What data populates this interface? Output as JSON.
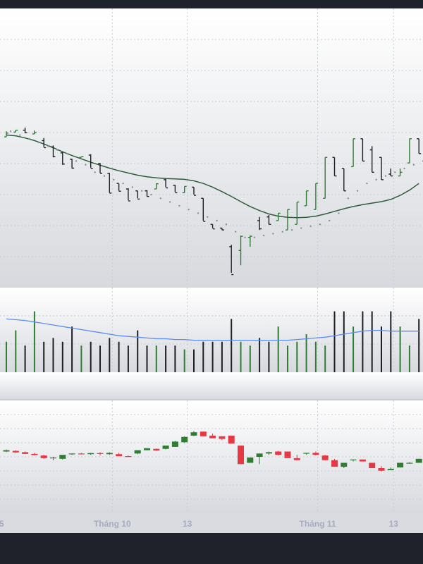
{
  "colors": {
    "frame": "#1f222b",
    "up": "#2e7d32",
    "down": "#e53945",
    "bar_dark": "#1c1f26",
    "ma_line": "#2f5d3a",
    "volume_ma": "#5b8def",
    "grid": "#c9ccd4"
  },
  "x_axis": {
    "labels": [
      {
        "text": "5",
        "index": -0.5
      },
      {
        "text": "Tháng 10",
        "index": 11.3
      },
      {
        "text": "13",
        "index": 19.3
      },
      {
        "text": "Tháng 11",
        "index": 33.2
      },
      {
        "text": "13",
        "index": 41.3
      }
    ]
  },
  "chart_data": [
    {
      "type": "ohlc",
      "panel": "price-bars",
      "title": "",
      "grid": true,
      "categories_count": 45,
      "series": [
        {
          "name": "",
          "kind": "ohlc",
          "values": [
            [
              0,
              10.5,
              12.0,
              10.5,
              11.5
            ],
            [
              1,
              11.8,
              12.3,
              11.8,
              12.3
            ],
            [
              2,
              12.3,
              13.0,
              11.5,
              11.6
            ],
            [
              3,
              11.3,
              12.2,
              11.3,
              11.6
            ],
            [
              4,
              9.5,
              10.2,
              7.8,
              7.6
            ],
            [
              5,
              7.8,
              8.2,
              5.0,
              5.2
            ],
            [
              6,
              6.2,
              6.5,
              3.0,
              3.2
            ],
            [
              7,
              4.5,
              4.6,
              2.0,
              2.1
            ],
            [
              8,
              5.0,
              5.2,
              5.0,
              5.2
            ],
            [
              9,
              5.6,
              5.8,
              2.2,
              2.0
            ],
            [
              10,
              3.3,
              3.5,
              0.8,
              0.7
            ],
            [
              11,
              0.7,
              0.8,
              -4.5,
              -4.6
            ],
            [
              12,
              -2.0,
              -2.1,
              -4.0,
              -4.1
            ],
            [
              13,
              -3.5,
              -3.3,
              -6.5,
              -6.7
            ],
            [
              14,
              -4.0,
              -4.0,
              -6.0,
              -6.2
            ],
            [
              15,
              -4.0,
              -3.8,
              -5.5,
              -5.5
            ],
            [
              16,
              -3.5,
              -3.5,
              -2.0,
              -2.1
            ],
            [
              17,
              -1.0,
              -0.8,
              -3.0,
              -3.2
            ],
            [
              18,
              -2.5,
              -2.4,
              -4.3,
              -4.5
            ],
            [
              19,
              -4.5,
              -2.8,
              -4.5,
              -2.8
            ],
            [
              20,
              -3.0,
              -3.0,
              -5.0,
              -5.2
            ],
            [
              21,
              -6.0,
              -6.0,
              -12.0,
              -12.2
            ],
            [
              22,
              -13.0,
              -13.0,
              -14.0,
              -14.2
            ],
            [
              23,
              -14.0,
              -14.5,
              -14.0,
              -14.5
            ],
            [
              24,
              -19.0,
              -18.5,
              -26.0,
              -26.5
            ],
            [
              25,
              -20.0,
              -16.0,
              -24.0,
              -16.2
            ],
            [
              26,
              -16.5,
              -16.0,
              -19.0,
              -16.2
            ],
            [
              27,
              -12.0,
              -11.0,
              -14.5,
              -14.2
            ],
            [
              28,
              -11.0,
              -10.5,
              -13.0,
              -13.0
            ],
            [
              29,
              -12.0,
              -10.0,
              -12.0,
              -10.0
            ],
            [
              30,
              -14.5,
              -9.0,
              -14.5,
              -9.0
            ],
            [
              31,
              -13.0,
              -7.0,
              -13.0,
              -7.0
            ],
            [
              32,
              -8.0,
              -4.0,
              -8.0,
              -4.0
            ],
            [
              33,
              -9.0,
              -2.0,
              -9.0,
              -2.0
            ],
            [
              34,
              -6.0,
              5.0,
              -6.0,
              5.0
            ],
            [
              35,
              5.0,
              5.0,
              0.0,
              0.0
            ],
            [
              36,
              2.0,
              2.0,
              -4.0,
              -4.0
            ],
            [
              37,
              2.5,
              10.0,
              2.5,
              10.0
            ],
            [
              38,
              10.0,
              10.0,
              4.0,
              4.0
            ],
            [
              39,
              7.0,
              8.0,
              1.0,
              1.0
            ],
            [
              40,
              5.0,
              5.0,
              -1.0,
              -1.0
            ],
            [
              41,
              0.5,
              2.0,
              0.0,
              0.0
            ],
            [
              42,
              0.0,
              2.0,
              0.0,
              1.0
            ],
            [
              43,
              3.5,
              10.0,
              3.5,
              10.0
            ],
            [
              44,
              10.0,
              10.0,
              6.0,
              6.0
            ]
          ]
        },
        {
          "name": "",
          "kind": "ma",
          "values": [
            11.0,
            10.8,
            10.2,
            9.5,
            8.6,
            7.6,
            6.5,
            5.5,
            4.6,
            3.7,
            2.9,
            2.1,
            1.4,
            0.8,
            0.2,
            -0.2,
            -0.5,
            -0.7,
            -0.8,
            -0.9,
            -1.3,
            -2.0,
            -3.0,
            -4.2,
            -5.5,
            -6.9,
            -8.2,
            -9.3,
            -10.2,
            -10.8,
            -11.1,
            -11.2,
            -11.1,
            -10.8,
            -10.2,
            -9.5,
            -8.8,
            -8.2,
            -7.7,
            -7.3,
            -6.9,
            -6.3,
            -5.2,
            -3.8,
            -2.0
          ]
        },
        {
          "name": "",
          "kind": "dots",
          "values": [
            12.0,
            11.0,
            10.0,
            9.0,
            8.0,
            7.0,
            6.0,
            4.0,
            3.0,
            1.0,
            0.0,
            -1.0,
            -2.0,
            -3.0,
            -4.0,
            -5.0,
            -6.0,
            -7.0,
            -8.0,
            -9.0,
            -10.0,
            -11.0,
            -12.0,
            -13.0,
            -15.0,
            -16.5,
            -16.5,
            -16.0,
            -15.5,
            -15.0,
            -14.5,
            -14.0,
            -13.5,
            -13.0,
            -12.0,
            -10.0,
            -6.0,
            -4.0,
            -2.0,
            -1.0,
            0.0,
            1.0,
            2.0,
            3.0,
            4.0
          ]
        }
      ],
      "ylim": [
        -30,
        45
      ]
    },
    {
      "type": "bar",
      "panel": "volume",
      "grid": true,
      "categories_count": 45,
      "series": [
        {
          "name": "",
          "values": [
            40,
            55,
            35,
            80,
            40,
            45,
            40,
            60,
            35,
            40,
            35,
            45,
            40,
            35,
            55,
            35,
            35,
            35,
            35,
            30,
            30,
            40,
            40,
            40,
            70,
            40,
            35,
            45,
            40,
            60,
            35,
            40,
            50,
            40,
            35,
            80,
            80,
            60,
            80,
            80,
            60,
            80,
            60,
            35,
            70
          ]
        },
        {
          "name": "",
          "kind": "ma",
          "values": [
            70,
            69,
            68,
            66,
            64,
            62,
            60,
            58,
            56,
            54,
            52,
            50,
            48,
            47,
            46,
            45,
            44,
            44,
            43,
            43,
            42,
            42,
            42,
            42,
            42,
            42,
            42,
            42,
            42,
            42,
            42,
            43,
            44,
            45,
            46,
            48,
            50,
            52,
            54,
            55,
            55,
            54,
            54,
            54,
            54
          ]
        }
      ],
      "ylim": [
        0,
        100
      ]
    },
    {
      "type": "candlestick",
      "panel": "candles",
      "grid": true,
      "categories_count": 45,
      "series": [
        {
          "name": "",
          "values": [
            [
              0,
              1.5,
              3.0,
              1.0,
              2.5
            ],
            [
              1,
              2.0,
              2.5,
              0.5,
              0.8
            ],
            [
              2,
              1.0,
              1.5,
              -0.5,
              -0.3
            ],
            [
              3,
              -0.3,
              0.5,
              -1.5,
              -1.2
            ],
            [
              4,
              -1.5,
              -1.0,
              -4.0,
              -3.5
            ],
            [
              5,
              -3.5,
              -2.5,
              -5.0,
              -3.0
            ],
            [
              6,
              -4.0,
              -1.5,
              -4.5,
              -1.0
            ],
            [
              7,
              -0.5,
              0.0,
              -1.0,
              0.0
            ],
            [
              8,
              0.0,
              0.5,
              -0.5,
              -0.3
            ],
            [
              9,
              -0.5,
              0.5,
              -1.0,
              0.3
            ],
            [
              10,
              0.3,
              1.0,
              -1.5,
              -0.3
            ],
            [
              11,
              -0.5,
              1.0,
              -1.0,
              0.5
            ],
            [
              12,
              -0.5,
              0.5,
              -2.0,
              -2.0
            ],
            [
              13,
              -2.0,
              -1.5,
              -2.5,
              -2.5
            ],
            [
              14,
              0.0,
              2.5,
              -0.5,
              2.5
            ],
            [
              15,
              2.5,
              4.0,
              2.5,
              4.0
            ],
            [
              16,
              3.5,
              3.8,
              2.0,
              2.3
            ],
            [
              17,
              3.5,
              6.0,
              3.0,
              6.0
            ],
            [
              18,
              5.0,
              9.5,
              5.0,
              9.0
            ],
            [
              19,
              8.5,
              13.0,
              8.0,
              12.5
            ],
            [
              20,
              13.5,
              17.0,
              13.0,
              16.0
            ],
            [
              21,
              16.5,
              16.5,
              13.0,
              13.0
            ],
            [
              22,
              13.5,
              15.0,
              11.5,
              11.5
            ],
            [
              23,
              13.0,
              12.5,
              10.0,
              11.0
            ],
            [
              24,
              13.5,
              13.5,
              7.5,
              7.5
            ],
            [
              25,
              6.0,
              6.0,
              -8.0,
              -8.0
            ],
            [
              26,
              -7.0,
              -3.0,
              -7.0,
              -3.0
            ],
            [
              27,
              -2.5,
              0.0,
              -8.0,
              0.0
            ],
            [
              28,
              0.0,
              1.5,
              -1.0,
              1.0
            ],
            [
              29,
              1.5,
              2.0,
              -1.5,
              -1.0
            ],
            [
              30,
              1.5,
              1.5,
              -3.5,
              -3.5
            ],
            [
              31,
              -3.5,
              -1.0,
              -5.0,
              -5.0
            ],
            [
              32,
              0.0,
              0.5,
              -1.0,
              0.5
            ],
            [
              33,
              0.5,
              1.5,
              -1.5,
              -1.0
            ],
            [
              34,
              -1.5,
              -1.0,
              -5.0,
              -5.0
            ],
            [
              35,
              -5.0,
              -4.0,
              -10.0,
              -10.0
            ],
            [
              36,
              -10.0,
              -7.0,
              -11.0,
              -7.0
            ],
            [
              37,
              -5.0,
              -4.5,
              -6.0,
              -4.5
            ],
            [
              38,
              -4.5,
              -4.5,
              -6.0,
              -6.0
            ],
            [
              39,
              -7.0,
              -7.0,
              -11.0,
              -11.0
            ],
            [
              40,
              -11.0,
              -9.5,
              -13.5,
              -13.0
            ],
            [
              41,
              -12.5,
              -10.5,
              -12.5,
              -11.5
            ],
            [
              42,
              -10.5,
              -7.0,
              -10.5,
              -7.0
            ],
            [
              43,
              -7.0,
              -6.5,
              -7.0,
              -7.0
            ],
            [
              44,
              -7.0,
              -4.0,
              -7.0,
              -4.0
            ]
          ]
        }
      ],
      "ylim": [
        -45,
        40
      ]
    }
  ]
}
